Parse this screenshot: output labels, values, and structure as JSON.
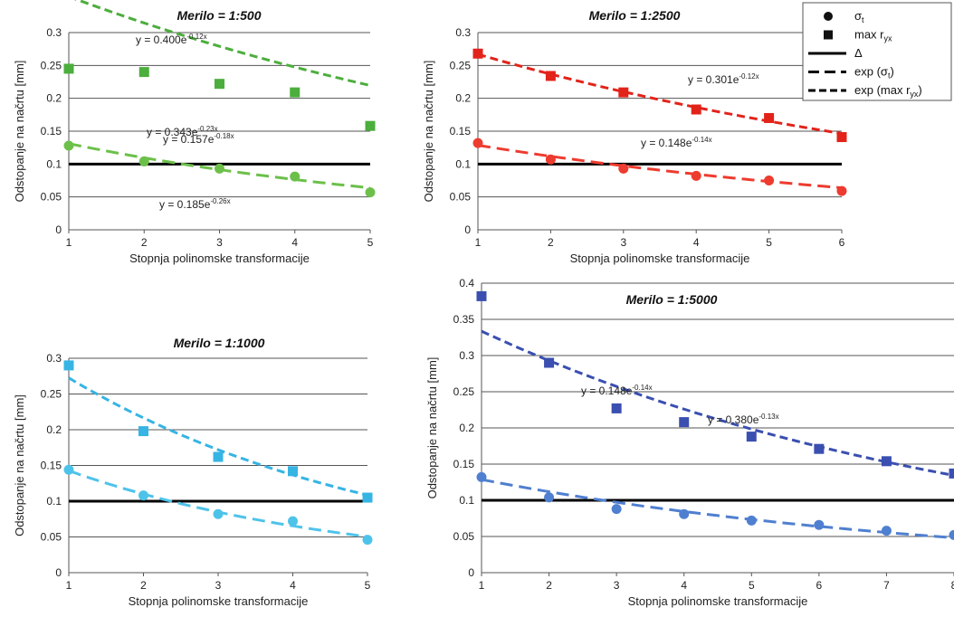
{
  "chart_data": [
    {
      "type": "scatter",
      "title": "Merilo = 1:500",
      "xlabel": "Stopnja polinomske transformacije",
      "ylabel": "Odstopanje na načrtu [mm]",
      "xlim": [
        1,
        5
      ],
      "ylim": [
        0,
        0.3
      ],
      "yticks": [
        "0",
        "0.05",
        "0.1",
        "0.15",
        "0.2",
        "0.25",
        "0.3"
      ],
      "xticks": [
        "1",
        "2",
        "3",
        "4",
        "5"
      ],
      "delta": 0.1,
      "color_sigma": "#6cc04a",
      "color_max": "#4cae3c",
      "x": [
        1,
        2,
        3,
        4,
        5
      ],
      "series": [
        {
          "marker": "circle",
          "values": [
            0.128,
            0.104,
            0.093,
            0.081,
            0.057
          ],
          "fit": {
            "a": 0.157,
            "b": -0.18,
            "label": "y = 0.157e",
            "exp": "-0.18x"
          }
        },
        {
          "marker": "square",
          "values": [
            0.245,
            0.24,
            0.222,
            0.209,
            0.158
          ],
          "fit": {
            "a": 0.4,
            "b": -0.12,
            "label": "y = 0.400e",
            "exp": "-0.12x"
          }
        }
      ]
    },
    {
      "type": "scatter",
      "title": "Merilo = 1:2500",
      "xlabel": "Stopnja polinomske transformacije",
      "ylabel": "Odstopanje na načrtu [mm]",
      "xlim": [
        1,
        6
      ],
      "ylim": [
        0,
        0.3
      ],
      "yticks": [
        "0",
        "0.05",
        "0.1",
        "0.15",
        "0.2",
        "0.25",
        "0.3"
      ],
      "xticks": [
        "1",
        "2",
        "3",
        "4",
        "5",
        "6"
      ],
      "delta": 0.1,
      "color_sigma": "#ee3b2f",
      "color_max": "#e2231a",
      "x": [
        1,
        2,
        3,
        4,
        5,
        6
      ],
      "series": [
        {
          "marker": "circle",
          "values": [
            0.132,
            0.107,
            0.093,
            0.082,
            0.075,
            0.059
          ],
          "fit": {
            "a": 0.148,
            "b": -0.14,
            "label": "y = 0.148e",
            "exp": "-0.14x"
          }
        },
        {
          "marker": "square",
          "values": [
            0.268,
            0.234,
            0.209,
            0.183,
            0.17,
            0.141
          ],
          "fit": {
            "a": 0.301,
            "b": -0.12,
            "label": "y = 0.301e",
            "exp": "-0.12x"
          }
        }
      ]
    },
    {
      "type": "scatter",
      "title": "Merilo = 1:1000",
      "xlabel": "Stopnja polinomske transformacije",
      "ylabel": "Odstopanje na načrtu [mm]",
      "xlim": [
        1,
        5
      ],
      "ylim": [
        0,
        0.3
      ],
      "yticks": [
        "0",
        "0.05",
        "0.1",
        "0.15",
        "0.2",
        "0.25",
        "0.3"
      ],
      "xticks": [
        "1",
        "2",
        "3",
        "4",
        "5"
      ],
      "delta": 0.1,
      "color_sigma": "#4ec3ea",
      "color_max": "#36b4e4",
      "x": [
        1,
        2,
        3,
        4,
        5
      ],
      "series": [
        {
          "marker": "circle",
          "values": [
            0.144,
            0.108,
            0.082,
            0.072,
            0.046
          ],
          "fit": {
            "a": 0.185,
            "b": -0.26,
            "label": "y = 0.185e",
            "exp": "-0.26x"
          }
        },
        {
          "marker": "square",
          "values": [
            0.29,
            0.198,
            0.162,
            0.142,
            0.105
          ],
          "fit": {
            "a": 0.343,
            "b": -0.23,
            "label": "y = 0.343e",
            "exp": "-0.23x"
          }
        }
      ]
    },
    {
      "type": "scatter",
      "title": "Merilo = 1:5000",
      "xlabel": "Stopnja polinomske transformacije",
      "ylabel": "Odstopanje na načrtu [mm]",
      "xlim": [
        1,
        8
      ],
      "ylim": [
        0,
        0.4
      ],
      "yticks": [
        "0",
        "0.05",
        "0.1",
        "0.15",
        "0.2",
        "0.25",
        "0.3",
        "0.35",
        "0.4"
      ],
      "xticks": [
        "1",
        "2",
        "3",
        "4",
        "5",
        "6",
        "7",
        "8"
      ],
      "delta": 0.1,
      "color_sigma": "#4f7fd0",
      "color_max": "#3a4fb0",
      "x": [
        1,
        2,
        3,
        4,
        5,
        6,
        7,
        8
      ],
      "series": [
        {
          "marker": "circle",
          "values": [
            0.132,
            0.104,
            0.088,
            0.081,
            0.072,
            0.066,
            0.058,
            0.052
          ],
          "fit": {
            "a": 0.148,
            "b": -0.14,
            "label": "y = 0.148e",
            "exp": "-0.14x"
          }
        },
        {
          "marker": "square",
          "values": [
            0.382,
            0.29,
            0.227,
            0.208,
            0.188,
            0.171,
            0.154,
            0.137
          ],
          "fit": {
            "a": 0.38,
            "b": -0.13,
            "label": "y = 0.380e",
            "exp": "-0.13x"
          }
        }
      ]
    }
  ],
  "legend": {
    "placement": "top-right",
    "items": [
      {
        "kind": "circle",
        "label": "σ",
        "sub": "t"
      },
      {
        "kind": "square",
        "label": "max r",
        "sub": "yx"
      },
      {
        "kind": "solid",
        "label": "Δ"
      },
      {
        "kind": "dash",
        "label": "exp (σ",
        "sub": "t",
        "suffix": ")"
      },
      {
        "kind": "shortdash",
        "label": "exp (max r",
        "sub": "yx",
        "suffix": ")"
      }
    ]
  }
}
